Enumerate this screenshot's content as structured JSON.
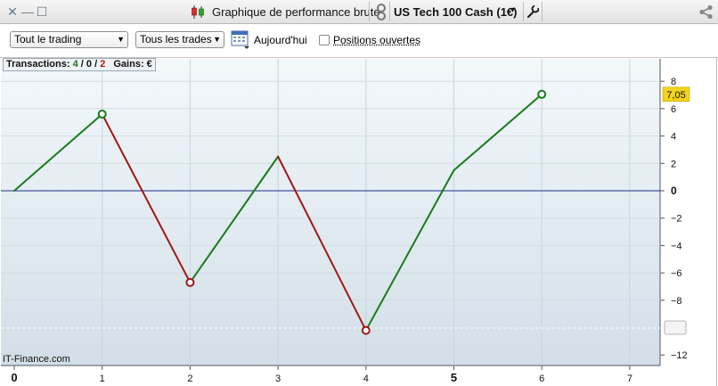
{
  "titlebar": {
    "title": "Graphique de performance brute",
    "instrument": "US Tech 100 Cash (1€)"
  },
  "toolbar": {
    "scope_select": "Tout le trading",
    "trades_select": "Tous les trades",
    "date_label": "Aujourd'hui",
    "open_positions_label": "Positions ouvertes",
    "open_positions_checked": false
  },
  "summary": {
    "label": "Transactions:",
    "wins": "4",
    "separator": " / ",
    "neutral": "0",
    "losses": "2",
    "gains_label": "Gains: €"
  },
  "watermark": "IT-Finance.com",
  "colors": {
    "win": "#1a7a1a",
    "loss": "#a01818",
    "zero_line": "#1c2f8a",
    "last_value_badge": "#f1d21c"
  },
  "chart_data": {
    "type": "line",
    "x": [
      0,
      1,
      2,
      3,
      4,
      5,
      6
    ],
    "values": [
      0,
      5.6,
      -6.7,
      2.5,
      -10.2,
      1.5,
      7.05
    ],
    "segment_results": [
      "win",
      "loss",
      "win",
      "loss",
      "win",
      "win"
    ],
    "marked_points": [
      {
        "x": 1,
        "y": 5.6,
        "result": "win"
      },
      {
        "x": 2,
        "y": -6.7,
        "result": "loss"
      },
      {
        "x": 4,
        "y": -10.2,
        "result": "loss"
      },
      {
        "x": 6,
        "y": 7.05,
        "result": "win"
      }
    ],
    "last_value_label": "7,05",
    "x_ticks": [
      "0",
      "1",
      "2",
      "3",
      "4",
      "5",
      "6",
      "7"
    ],
    "y_ticks": [
      "8",
      "6",
      "4",
      "2",
      "0",
      "−2",
      "−4",
      "−6",
      "−8",
      "−12"
    ],
    "y_tick_values": [
      8,
      6,
      4,
      2,
      0,
      -2,
      -4,
      -6,
      -8,
      -12
    ],
    "xlim": [
      0,
      7
    ],
    "ylim": [
      -12.7,
      9.5
    ],
    "grid": true
  }
}
